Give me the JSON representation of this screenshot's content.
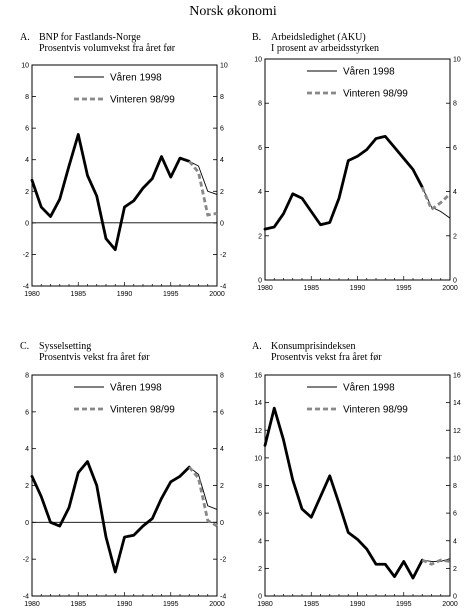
{
  "page": {
    "title": "Norsk økonomi"
  },
  "legend": {
    "series_a": "Våren 1998",
    "series_b": "Vinteren 98/99"
  },
  "colors": {
    "line_a": "#000000",
    "line_b": "#888888"
  },
  "chart_data": [
    {
      "type": "line",
      "panel_letter": "A.",
      "title": "BNP for Fastlands-Norge",
      "subtitle": "Prosentvis volumvekst fra året før",
      "xlim": [
        1980,
        2000
      ],
      "ylim": [
        -4,
        10
      ],
      "yticks": [
        -4,
        -2,
        0,
        2,
        4,
        6,
        8,
        10
      ],
      "xticks": [
        1980,
        1985,
        1990,
        1995,
        2000
      ],
      "zero_line": true,
      "legend_position": "top-right",
      "series": [
        {
          "name": "Våren 1998",
          "style": "thin",
          "x": [
            1980,
            1981,
            1982,
            1983,
            1984,
            1985,
            1986,
            1987,
            1988,
            1989,
            1990,
            1991,
            1992,
            1993,
            1994,
            1995,
            1996,
            1997,
            1998,
            1999,
            2000
          ],
          "y": [
            2.7,
            1.0,
            0.4,
            1.5,
            3.6,
            5.6,
            3.0,
            1.7,
            -1.0,
            -1.7,
            1.0,
            1.4,
            2.2,
            2.8,
            4.2,
            2.9,
            4.1,
            3.9,
            3.6,
            2.0,
            1.8
          ]
        },
        {
          "name": "Vinteren 98/99",
          "style": "dashed",
          "x": [
            1997,
            1998,
            1999,
            2000
          ],
          "y": [
            3.9,
            3.2,
            0.5,
            0.6
          ]
        }
      ]
    },
    {
      "type": "line",
      "panel_letter": "B.",
      "title": "Arbeidsledighet (AKU)",
      "subtitle": "I prosent av arbeidsstyrken",
      "xlim": [
        1980,
        2000
      ],
      "ylim": [
        0,
        10
      ],
      "yticks": [
        0,
        2,
        4,
        6,
        8,
        10
      ],
      "xticks": [
        1980,
        1985,
        1990,
        1995,
        2000
      ],
      "zero_line": false,
      "legend_position": "top-right",
      "series": [
        {
          "name": "Våren 1998",
          "style": "thin",
          "x": [
            1980,
            1981,
            1982,
            1983,
            1984,
            1985,
            1986,
            1987,
            1988,
            1989,
            1990,
            1991,
            1992,
            1993,
            1994,
            1995,
            1996,
            1997,
            1998,
            1999,
            2000
          ],
          "y": [
            2.3,
            2.4,
            3.0,
            3.9,
            3.7,
            3.1,
            2.5,
            2.6,
            3.7,
            5.4,
            5.6,
            5.9,
            6.4,
            6.5,
            6.0,
            5.5,
            5.0,
            4.2,
            3.3,
            3.1,
            2.8
          ]
        },
        {
          "name": "Vinteren 98/99",
          "style": "dashed",
          "x": [
            1997,
            1998,
            1999,
            2000
          ],
          "y": [
            4.2,
            3.2,
            3.5,
            3.9
          ]
        }
      ]
    },
    {
      "type": "line",
      "panel_letter": "C.",
      "title": "Sysselsetting",
      "subtitle": "Prosentvis vekst fra året før",
      "xlim": [
        1980,
        2000
      ],
      "ylim": [
        -4,
        8
      ],
      "yticks": [
        -4,
        -2,
        0,
        2,
        4,
        6,
        8
      ],
      "xticks": [
        1980,
        1985,
        1990,
        1995,
        2000
      ],
      "zero_line": true,
      "legend_position": "top-right",
      "series": [
        {
          "name": "Våren 1998",
          "style": "thin",
          "x": [
            1980,
            1981,
            1982,
            1983,
            1984,
            1985,
            1986,
            1987,
            1988,
            1989,
            1990,
            1991,
            1992,
            1993,
            1994,
            1995,
            1996,
            1997,
            1998,
            1999,
            2000
          ],
          "y": [
            2.5,
            1.4,
            0.0,
            -0.2,
            0.8,
            2.7,
            3.3,
            2.0,
            -0.8,
            -2.7,
            -0.8,
            -0.7,
            -0.2,
            0.2,
            1.3,
            2.2,
            2.5,
            3.0,
            2.6,
            0.9,
            0.7
          ]
        },
        {
          "name": "Vinteren 98/99",
          "style": "dashed",
          "x": [
            1997,
            1998,
            1999,
            2000
          ],
          "y": [
            3.0,
            2.4,
            0.1,
            -0.2
          ]
        }
      ]
    },
    {
      "type": "line",
      "panel_letter": "A.",
      "title": "Konsumprisindeksen",
      "subtitle": "Prosentvis vekst fra året før",
      "xlim": [
        1980,
        2000
      ],
      "ylim": [
        0,
        16
      ],
      "yticks": [
        0,
        2,
        4,
        6,
        8,
        10,
        12,
        14,
        16
      ],
      "xticks": [
        1980,
        1985,
        1990,
        1995,
        2000
      ],
      "zero_line": false,
      "legend_position": "top-right",
      "series": [
        {
          "name": "Våren 1998",
          "style": "thin",
          "x": [
            1980,
            1981,
            1982,
            1983,
            1984,
            1985,
            1986,
            1987,
            1988,
            1989,
            1990,
            1991,
            1992,
            1993,
            1994,
            1995,
            1996,
            1997,
            1998,
            1999,
            2000
          ],
          "y": [
            10.9,
            13.6,
            11.3,
            8.4,
            6.3,
            5.7,
            7.2,
            8.7,
            6.7,
            4.6,
            4.1,
            3.4,
            2.3,
            2.3,
            1.4,
            2.5,
            1.3,
            2.6,
            2.5,
            2.5,
            2.7
          ]
        },
        {
          "name": "Vinteren 98/99",
          "style": "dashed",
          "x": [
            1997,
            1998,
            1999,
            2000
          ],
          "y": [
            2.6,
            2.3,
            2.6,
            2.5
          ]
        }
      ]
    }
  ]
}
